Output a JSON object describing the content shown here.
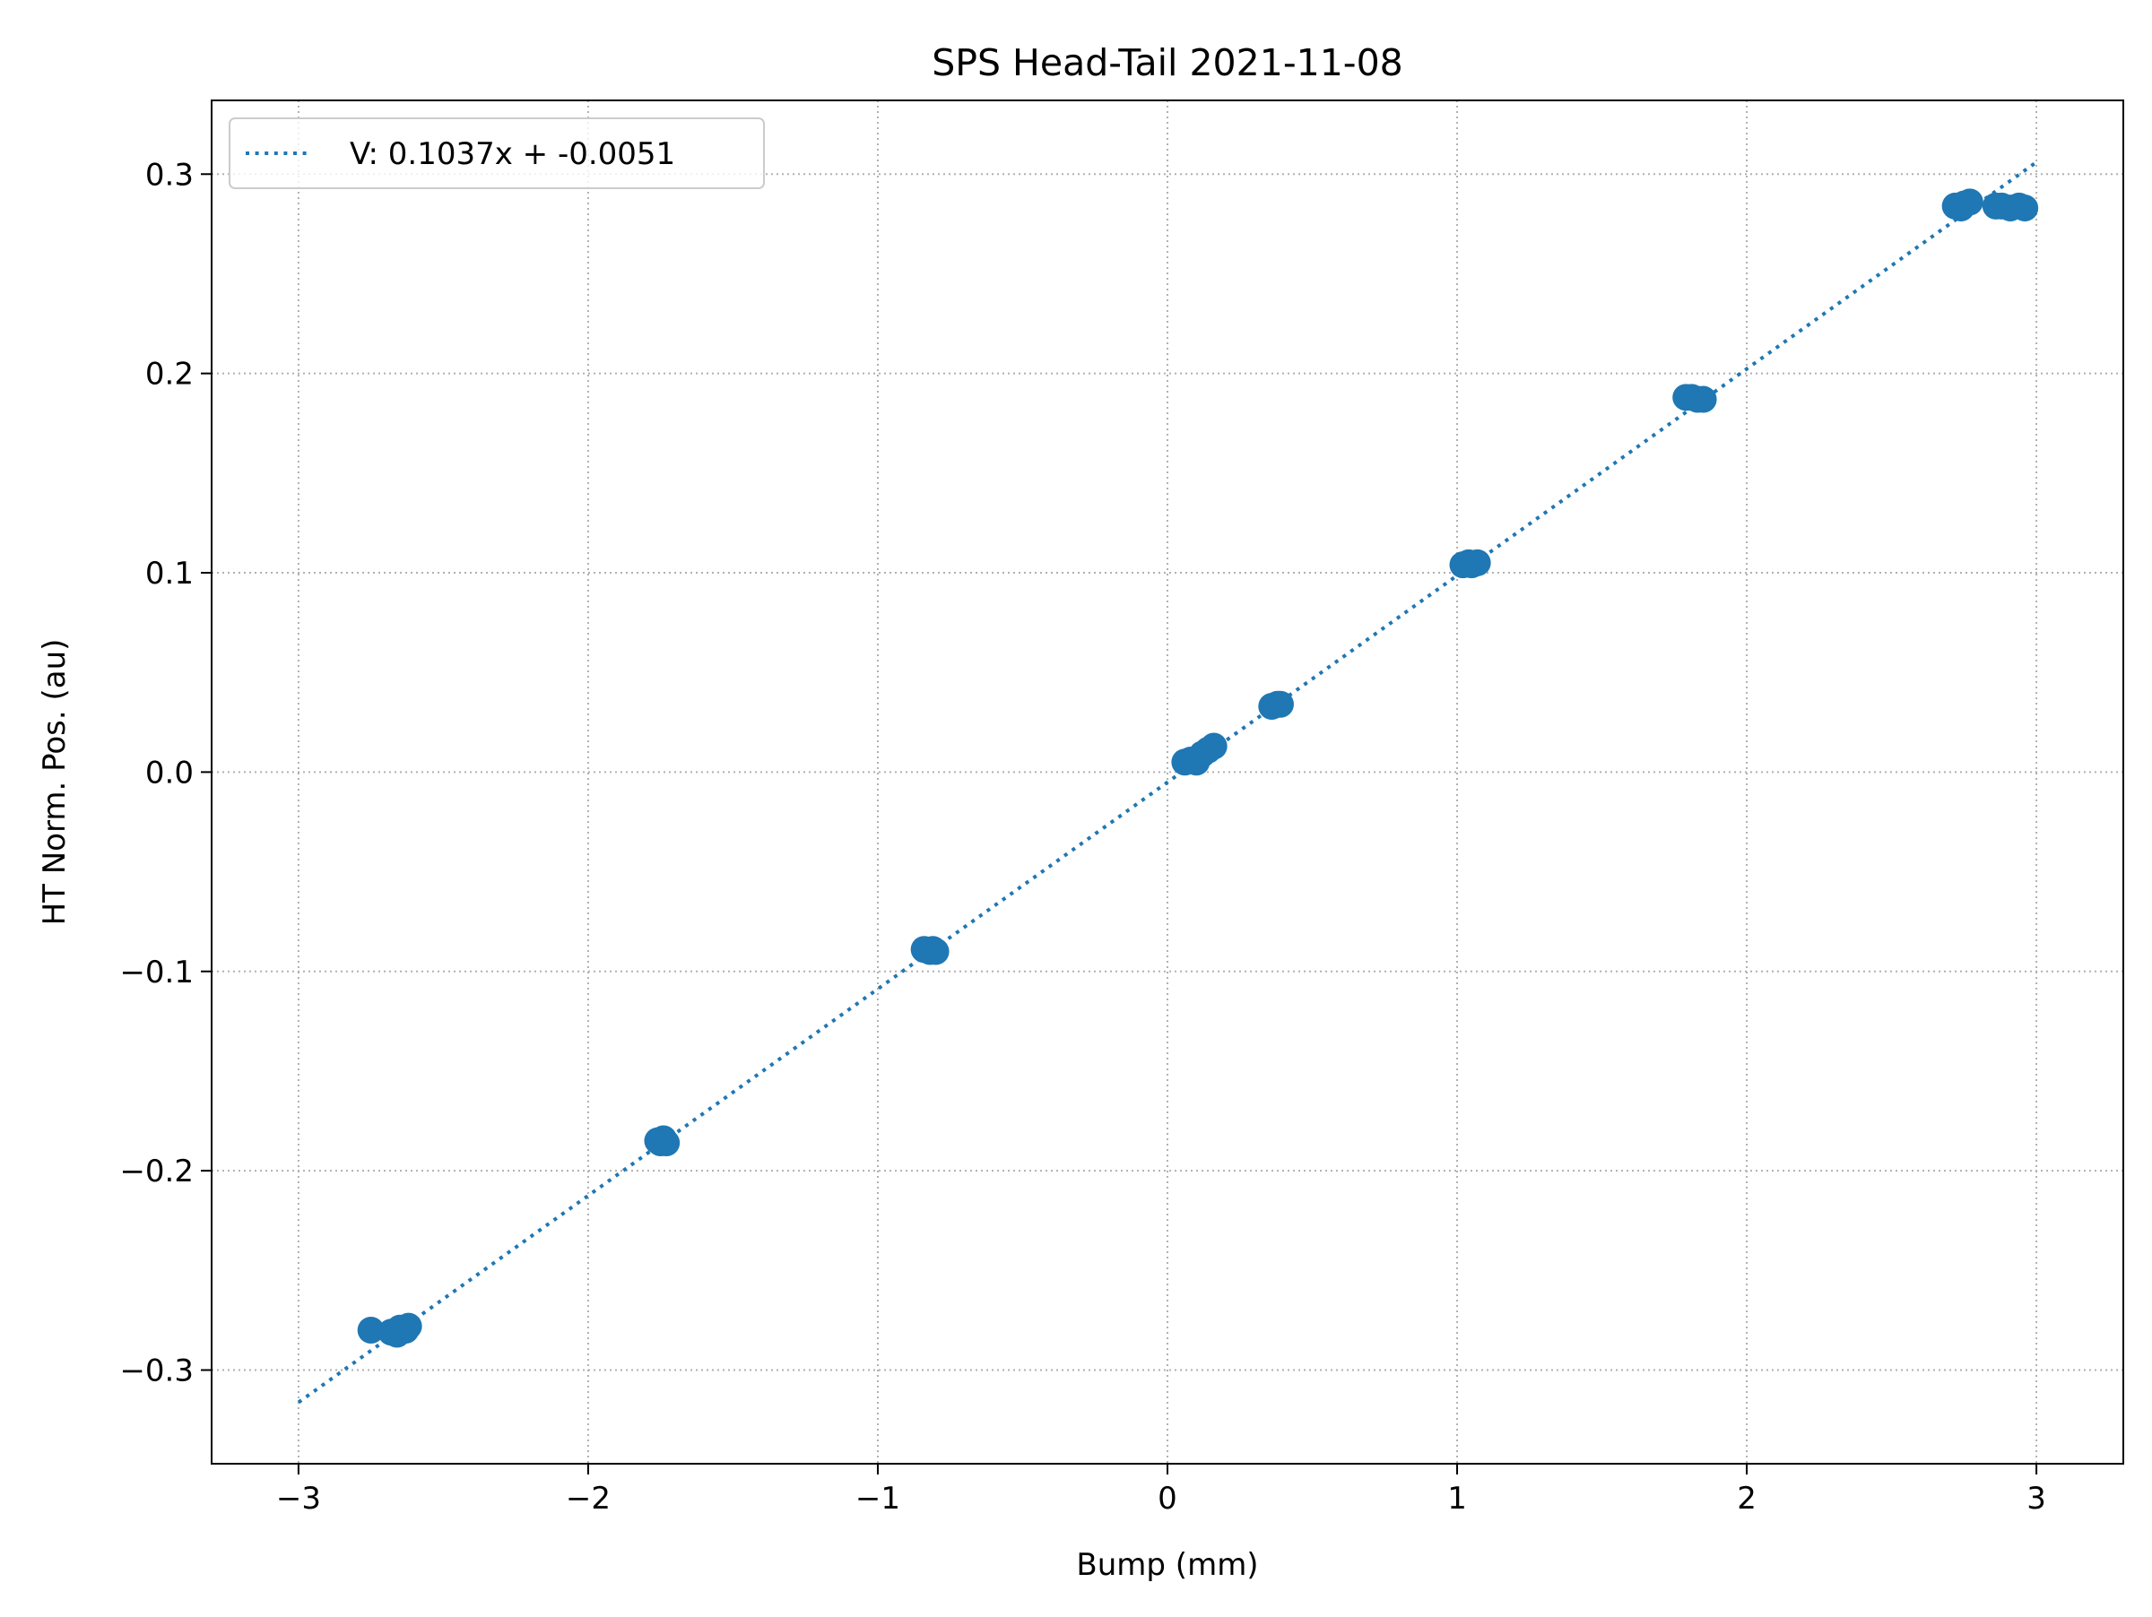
{
  "chart_data": {
    "type": "scatter",
    "title": "SPS Head-Tail 2021-11-08",
    "xlabel": "Bump (mm)",
    "ylabel": "HT Norm. Pos. (au)",
    "xlim": [
      -3.3,
      3.3
    ],
    "ylim": [
      -0.347,
      0.337
    ],
    "xticks": [
      -3,
      -2,
      -1,
      0,
      1,
      2,
      3
    ],
    "xtick_labels": [
      "−3",
      "−2",
      "−1",
      "0",
      "1",
      "2",
      "3"
    ],
    "yticks": [
      -0.3,
      -0.2,
      -0.1,
      0.0,
      0.1,
      0.2,
      0.3
    ],
    "ytick_labels": [
      "−0.3",
      "−0.2",
      "−0.1",
      "0.0",
      "0.1",
      "0.2",
      "0.3"
    ],
    "grid": true,
    "legend_position": "top-left",
    "marker_color": "#1f77b4",
    "fit": {
      "label": "V: 0.1037x + -0.0051",
      "slope": 0.1037,
      "intercept": -0.0051,
      "x_range": [
        -3.0,
        3.0
      ],
      "style": "dotted",
      "color": "#1f77b4"
    },
    "points": [
      {
        "x": -2.75,
        "y": -0.28
      },
      {
        "x": -2.68,
        "y": -0.281
      },
      {
        "x": -2.66,
        "y": -0.282
      },
      {
        "x": -2.65,
        "y": -0.279
      },
      {
        "x": -2.63,
        "y": -0.28
      },
      {
        "x": -2.62,
        "y": -0.278
      },
      {
        "x": -1.76,
        "y": -0.185
      },
      {
        "x": -1.75,
        "y": -0.186
      },
      {
        "x": -1.74,
        "y": -0.184
      },
      {
        "x": -1.73,
        "y": -0.186
      },
      {
        "x": -0.84,
        "y": -0.089
      },
      {
        "x": -0.82,
        "y": -0.09
      },
      {
        "x": -0.81,
        "y": -0.089
      },
      {
        "x": -0.8,
        "y": -0.09
      },
      {
        "x": 0.06,
        "y": 0.005
      },
      {
        "x": 0.08,
        "y": 0.006
      },
      {
        "x": 0.1,
        "y": 0.005
      },
      {
        "x": 0.12,
        "y": 0.009
      },
      {
        "x": 0.14,
        "y": 0.011
      },
      {
        "x": 0.16,
        "y": 0.013
      },
      {
        "x": 0.36,
        "y": 0.033
      },
      {
        "x": 0.38,
        "y": 0.034
      },
      {
        "x": 0.39,
        "y": 0.034
      },
      {
        "x": 1.02,
        "y": 0.104
      },
      {
        "x": 1.04,
        "y": 0.105
      },
      {
        "x": 1.05,
        "y": 0.104
      },
      {
        "x": 1.07,
        "y": 0.105
      },
      {
        "x": 1.79,
        "y": 0.188
      },
      {
        "x": 1.81,
        "y": 0.188
      },
      {
        "x": 1.83,
        "y": 0.187
      },
      {
        "x": 1.85,
        "y": 0.187
      },
      {
        "x": 2.72,
        "y": 0.284
      },
      {
        "x": 2.74,
        "y": 0.283
      },
      {
        "x": 2.75,
        "y": 0.285
      },
      {
        "x": 2.77,
        "y": 0.286
      },
      {
        "x": 2.86,
        "y": 0.284
      },
      {
        "x": 2.88,
        "y": 0.284
      },
      {
        "x": 2.91,
        "y": 0.283
      },
      {
        "x": 2.94,
        "y": 0.284
      },
      {
        "x": 2.96,
        "y": 0.283
      }
    ]
  }
}
